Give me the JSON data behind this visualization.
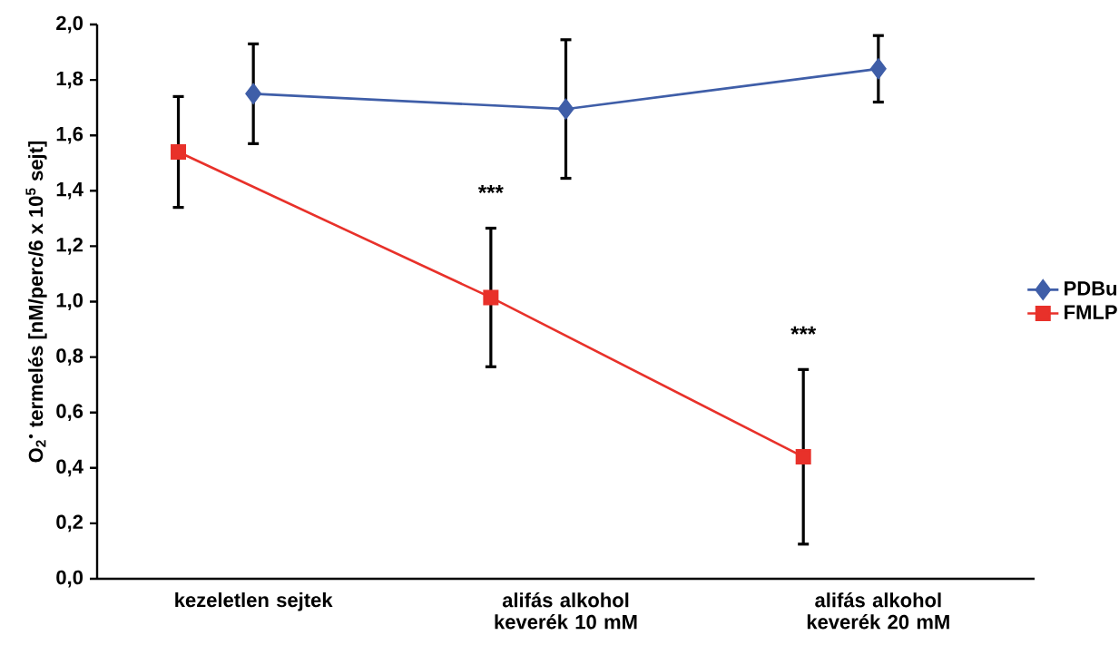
{
  "chart_data": {
    "type": "line",
    "ylabel": "O$_{2}$$^{•}$ termelés [nM/perc/6 x 10$^{5}$ sejt]",
    "categories": [
      "kezeletlen sejtek",
      "alifás alkohol keverék 10 mM",
      "alifás alkohol keverék 20 mM"
    ],
    "series": [
      {
        "name": "PDBu",
        "color": "#3f5ea8",
        "marker": "diamond",
        "values": [
          1.75,
          1.695,
          1.84
        ],
        "errors": [
          0.18,
          0.25,
          0.12
        ]
      },
      {
        "name": "FMLP",
        "color": "#e8312a",
        "marker": "square",
        "values": [
          1.54,
          1.015,
          0.44
        ],
        "errors": [
          0.2,
          0.25,
          0.315
        ]
      }
    ],
    "ylim": [
      0,
      2
    ],
    "yticks": [
      {
        "value": 0,
        "label": "0,0"
      },
      {
        "value": 0.2,
        "label": "0,2"
      },
      {
        "value": 0.4,
        "label": "0,4"
      },
      {
        "value": 0.6,
        "label": "0,6"
      },
      {
        "value": 0.8,
        "label": "0,8"
      },
      {
        "value": 1.0,
        "label": "1,0"
      },
      {
        "value": 1.2,
        "label": "1,2"
      },
      {
        "value": 1.4,
        "label": "1,4"
      },
      {
        "value": 1.6,
        "label": "1,6"
      },
      {
        "value": 1.8,
        "label": "1,8"
      },
      {
        "value": 2.0,
        "label": "2,0"
      }
    ],
    "annotations": [
      "***",
      "***"
    ],
    "grid": false,
    "legend": "right"
  }
}
